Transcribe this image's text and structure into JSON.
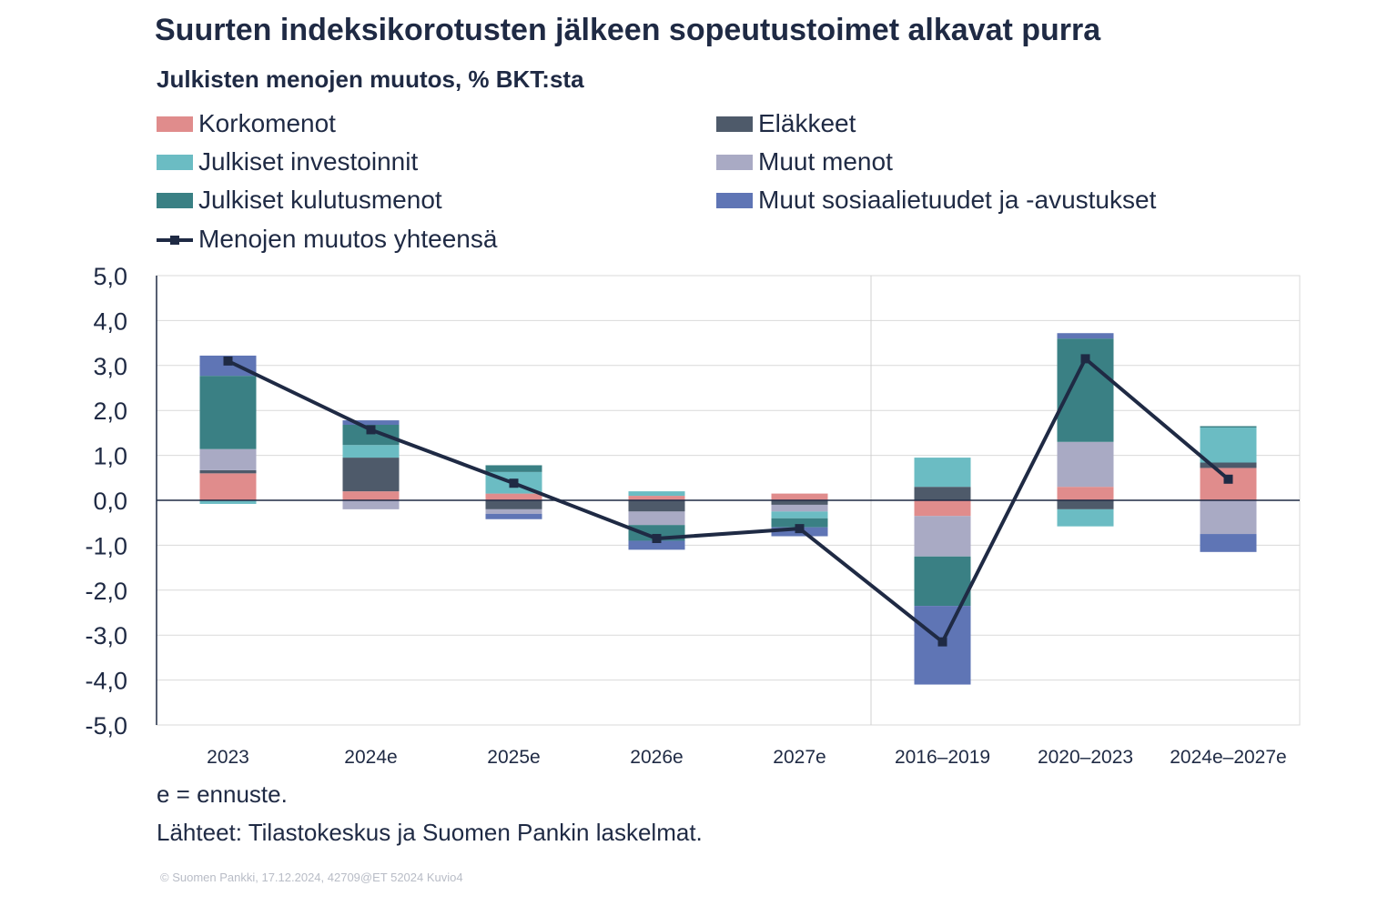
{
  "title": "Suurten indeksikorotusten jälkeen sopeutustoimet alkavat purra",
  "chart_data": {
    "type": "bar",
    "stacked": true,
    "title": "Suurten indeksikorotusten jälkeen sopeutustoimet alkavat purra",
    "subtitle": "Julkisten menojen muutos, % BKT:sta",
    "categories": [
      "2023",
      "2024e",
      "2025e",
      "2026e",
      "2027e",
      "2016–2019",
      "2020–2023",
      "2024e–2027e"
    ],
    "ylim": [
      -5,
      5
    ],
    "yticks": [
      "5,0",
      "4,0",
      "3,0",
      "2,0",
      "1,0",
      "0,0",
      "-1,0",
      "-2,0",
      "-3,0",
      "-4,0",
      "-5,0"
    ],
    "ytick_values": [
      5,
      4,
      3,
      2,
      1,
      0,
      -1,
      -2,
      -3,
      -4,
      -5
    ],
    "series": [
      {
        "name": "Korkomenot",
        "color": "#e08c8c",
        "values": [
          0.6,
          0.2,
          0.15,
          0.1,
          0.15,
          -0.35,
          0.3,
          0.72
        ]
      },
      {
        "name": "Eläkkeet",
        "color": "#4e5a6a",
        "values": [
          0.07,
          0.75,
          -0.2,
          -0.25,
          -0.1,
          0.3,
          -0.2,
          0.12
        ]
      },
      {
        "name": "Muut menot",
        "color": "#a9aac4",
        "values": [
          0.47,
          -0.2,
          -0.1,
          -0.3,
          -0.15,
          -0.9,
          1.0,
          -0.75
        ]
      },
      {
        "name": "Julkiset investoinnit",
        "color": "#6bbcc3",
        "values": [
          -0.08,
          0.28,
          0.48,
          0.1,
          -0.15,
          0.65,
          -0.38,
          0.78
        ]
      },
      {
        "name": "Julkiset kulutusmenot",
        "color": "#3a8084",
        "values": [
          1.63,
          0.45,
          0.15,
          -0.35,
          -0.2,
          -1.1,
          2.3,
          0.03
        ]
      },
      {
        "name": "Muut sosiaalietuudet ja -avustukset",
        "color": "#5f75b5",
        "values": [
          0.45,
          0.1,
          -0.12,
          -0.2,
          -0.2,
          -1.75,
          0.12,
          -0.4
        ]
      }
    ],
    "line": {
      "name": "Menojen muutos yhteensä",
      "color": "#1f2a44",
      "values": [
        3.1,
        1.57,
        0.38,
        -0.85,
        -0.63,
        -3.15,
        3.15,
        0.47
      ]
    }
  },
  "legend": [
    {
      "label": "Korkomenot",
      "color": "#e08c8c"
    },
    {
      "label": "Eläkkeet",
      "color": "#4e5a6a"
    },
    {
      "label": "Julkiset investoinnit",
      "color": "#6bbcc3"
    },
    {
      "label": "Muut menot",
      "color": "#a9aac4"
    },
    {
      "label": "Julkiset kulutusmenot",
      "color": "#3a8084"
    },
    {
      "label": "Muut sosiaalietuudet ja -avustukset",
      "color": "#5f75b5"
    },
    {
      "label": "Menojen muutos yhteensä",
      "color": "#1f2a44"
    }
  ],
  "footnotes": {
    "note": "e = ennuste.",
    "source": "Lähteet: Tilastokeskus ja Suomen Pankin laskelmat."
  },
  "copyright": "© Suomen Pankki, 17.12.2024, 42709@ET 52024 Kuvio4"
}
